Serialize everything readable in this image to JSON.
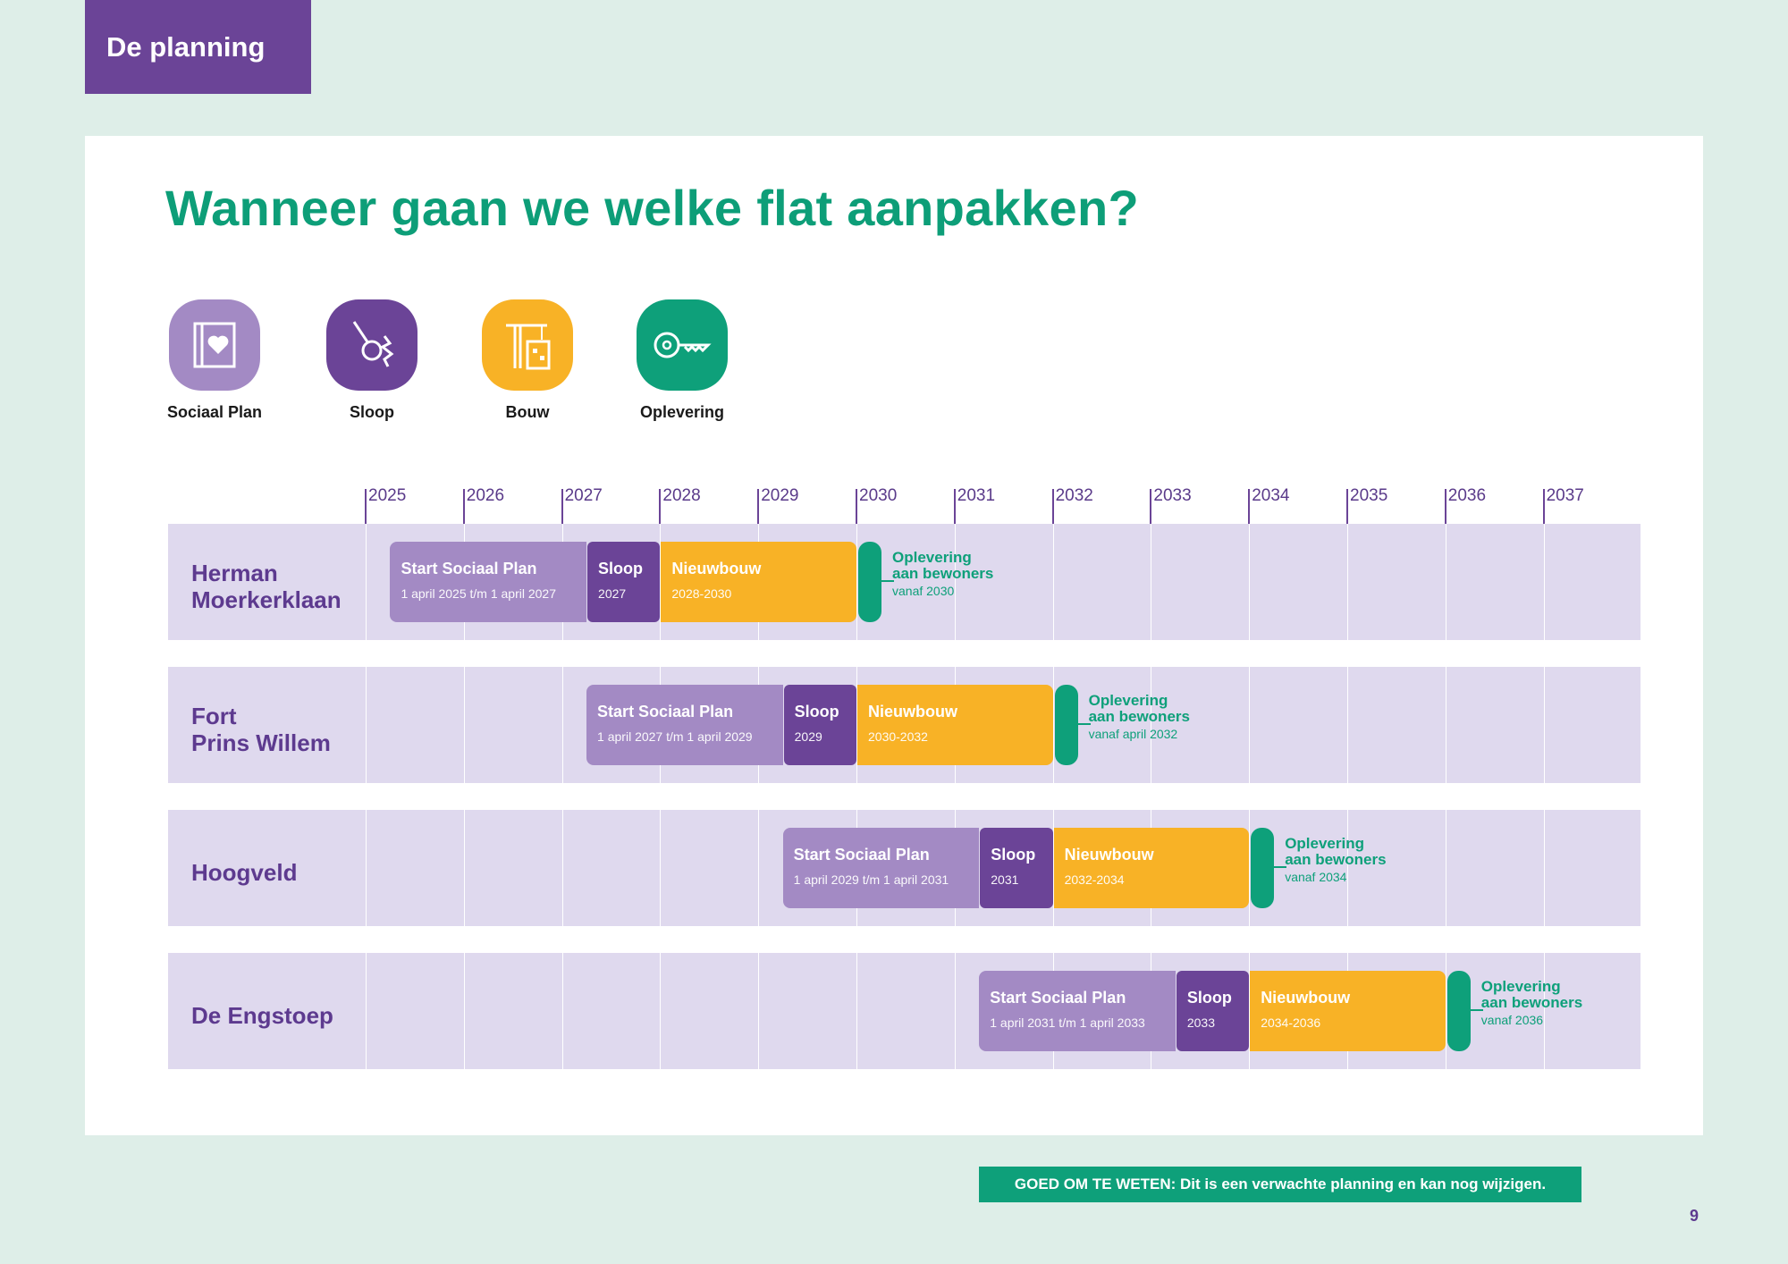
{
  "section_tab": "De planning",
  "title": "Wanneer gaan we welke flat aanpakken?",
  "legend": [
    {
      "label": "Sociaal Plan",
      "icon": "book-heart-icon",
      "color": "#a38ac4"
    },
    {
      "label": "Sloop",
      "icon": "wrecking-ball-icon",
      "color": "#6b4497"
    },
    {
      "label": "Bouw",
      "icon": "crane-building-icon",
      "color": "#f8b226"
    },
    {
      "label": "Oplevering",
      "icon": "key-icon",
      "color": "#0ea07a"
    }
  ],
  "years": [
    "2025",
    "2026",
    "2027",
    "2028",
    "2029",
    "2030",
    "2031",
    "2032",
    "2033",
    "2034",
    "2035",
    "2036",
    "2037"
  ],
  "rows": [
    {
      "name_line1": "Herman",
      "name_line2": "Moerkerklaan",
      "social_start": 2025.25,
      "social_end": 2027.25,
      "social_title": "Start Sociaal Plan",
      "social_sub": "1 april 2025 t/m 1 april 2027",
      "sloop_end": 2028,
      "sloop_title": "Sloop",
      "sloop_sub": "2027",
      "bouw_end": 2030,
      "bouw_title": "Nieuwbouw",
      "bouw_sub": "2028-2030",
      "opl_title1": "Oplevering",
      "opl_title2": "aan bewoners",
      "opl_sub": "vanaf 2030"
    },
    {
      "name_line1": "Fort",
      "name_line2": "Prins Willem",
      "social_start": 2027.25,
      "social_end": 2029.25,
      "social_title": "Start Sociaal Plan",
      "social_sub": "1 april 2027 t/m 1 april 2029",
      "sloop_end": 2030,
      "sloop_title": "Sloop",
      "sloop_sub": "2029",
      "bouw_end": 2032,
      "bouw_title": "Nieuwbouw",
      "bouw_sub": "2030-2032",
      "opl_title1": "Oplevering",
      "opl_title2": "aan bewoners",
      "opl_sub": "vanaf april 2032"
    },
    {
      "name_line1": "Hoogveld",
      "name_line2": "",
      "social_start": 2029.25,
      "social_end": 2031.25,
      "social_title": "Start Sociaal Plan",
      "social_sub": "1 april 2029 t/m 1 april 2031",
      "sloop_end": 2032,
      "sloop_title": "Sloop",
      "sloop_sub": "2031",
      "bouw_end": 2034,
      "bouw_title": "Nieuwbouw",
      "bouw_sub": "2032-2034",
      "opl_title1": "Oplevering",
      "opl_title2": "aan bewoners",
      "opl_sub": "vanaf 2034"
    },
    {
      "name_line1": "De Engstoep",
      "name_line2": "",
      "social_start": 2031.25,
      "social_end": 2033.25,
      "social_title": "Start Sociaal Plan",
      "social_sub": "1 april 2031 t/m 1 april 2033",
      "sloop_end": 2034,
      "sloop_title": "Sloop",
      "sloop_sub": "2033",
      "bouw_end": 2036,
      "bouw_title": "Nieuwbouw",
      "bouw_sub": "2034-2036",
      "opl_title1": "Oplevering",
      "opl_title2": "aan bewoners",
      "opl_sub": "vanaf 2036"
    }
  ],
  "note": "GOED OM TE WETEN: Dit is een verwachte planning en kan nog wijzigen.",
  "page_number": "9"
}
